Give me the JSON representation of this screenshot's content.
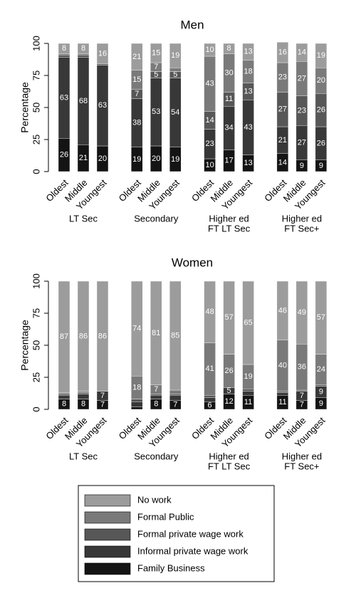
{
  "chart_data": [
    {
      "type": "stacked-bar",
      "title": "Men",
      "y_label": "Percentage",
      "categories": [
        "Oldest",
        "Middle",
        "Youngest",
        "Oldest",
        "Middle",
        "Youngest",
        "Oldest",
        "Middle",
        "Youngest",
        "Oldest",
        "Middle",
        "Youngest"
      ],
      "groups": [
        [
          "LT Sec"
        ],
        [
          "Secondary"
        ],
        [
          "Higher ed",
          "FT LT Sec"
        ],
        [
          "Higher ed",
          "FT Sec+"
        ]
      ],
      "ylim": [
        0,
        100
      ],
      "yticks": [
        0,
        25,
        50,
        75,
        100
      ],
      "series": [
        {
          "name": "Family Business",
          "color": "#141414",
          "values": [
            26,
            21,
            20,
            19,
            20,
            19,
            10,
            17,
            13,
            14,
            9,
            9
          ]
        },
        {
          "name": "Informal private wage work",
          "color": "#383838",
          "values": [
            63,
            68,
            63,
            38,
            53,
            54,
            23,
            34,
            43,
            21,
            27,
            26
          ]
        },
        {
          "name": "Formal private wage work",
          "color": "#575757",
          "values": [
            2,
            2,
            1,
            7,
            5,
            5,
            14,
            11,
            13,
            27,
            23,
            26
          ]
        },
        {
          "name": "Formal Public",
          "color": "#7a7a7a",
          "values": [
            1,
            1,
            0,
            15,
            7,
            3,
            43,
            30,
            18,
            23,
            27,
            20
          ]
        },
        {
          "name": "No work",
          "color": "#9c9c9c",
          "values": [
            8,
            8,
            16,
            21,
            15,
            19,
            10,
            8,
            13,
            16,
            14,
            19
          ]
        }
      ]
    },
    {
      "type": "stacked-bar",
      "title": "Women",
      "y_label": "Percentage",
      "categories": [
        "Oldest",
        "Middle",
        "Youngest",
        "Oldest",
        "Middle",
        "Youngest",
        "Oldest",
        "Middle",
        "Youngest",
        "Oldest",
        "Middle",
        "Youngest"
      ],
      "groups": [
        [
          "LT Sec"
        ],
        [
          "Secondary"
        ],
        [
          "Higher ed",
          "FT LT Sec"
        ],
        [
          "Higher ed",
          "FT Sec+"
        ]
      ],
      "ylim": [
        0,
        100
      ],
      "yticks": [
        0,
        25,
        50,
        75,
        100
      ],
      "series": [
        {
          "name": "Family Business",
          "color": "#141414",
          "values": [
            8,
            8,
            7,
            2,
            8,
            7,
            6,
            12,
            11,
            11,
            7,
            9
          ]
        },
        {
          "name": "Informal private wage work",
          "color": "#383838",
          "values": [
            3,
            4,
            7,
            4,
            3,
            4,
            3,
            5,
            3,
            2,
            7,
            9
          ]
        },
        {
          "name": "Formal private wage work",
          "color": "#575757",
          "values": [
            1,
            1,
            0,
            2,
            1,
            1,
            2,
            0,
            2,
            1,
            1,
            1
          ]
        },
        {
          "name": "Formal Public",
          "color": "#7a7a7a",
          "values": [
            1,
            1,
            0,
            18,
            7,
            3,
            41,
            26,
            19,
            40,
            36,
            24
          ]
        },
        {
          "name": "No work",
          "color": "#9c9c9c",
          "values": [
            87,
            86,
            86,
            74,
            81,
            85,
            48,
            57,
            65,
            46,
            49,
            57
          ]
        }
      ]
    }
  ]
}
